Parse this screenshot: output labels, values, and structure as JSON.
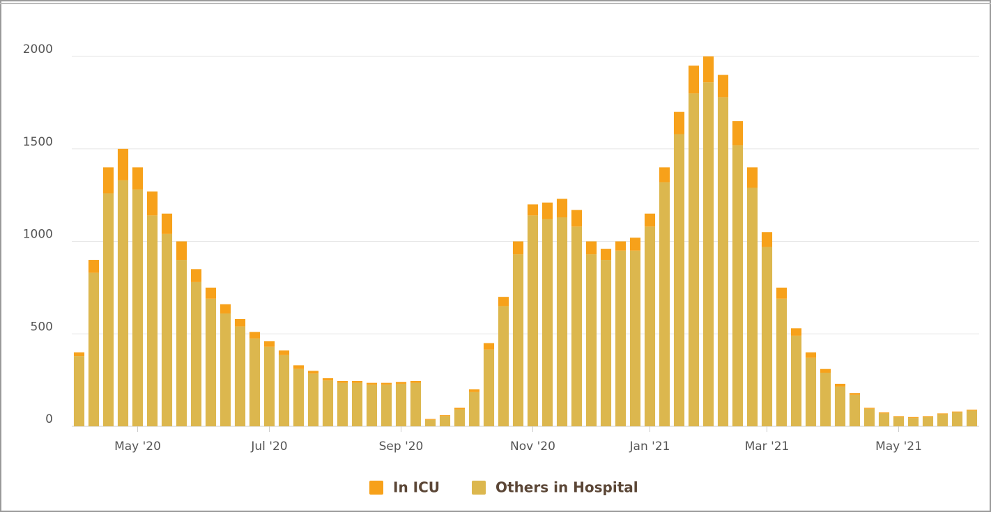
{
  "chart_data": {
    "type": "bar",
    "stacked": true,
    "categories": [
      null,
      null,
      null,
      null,
      "May '20",
      null,
      null,
      null,
      null,
      null,
      null,
      null,
      null,
      "Jul '20",
      null,
      null,
      null,
      null,
      null,
      null,
      null,
      null,
      "Sep '20",
      null,
      null,
      null,
      null,
      null,
      null,
      null,
      null,
      "Nov '20",
      null,
      null,
      null,
      null,
      null,
      null,
      null,
      "Jan '21",
      null,
      null,
      null,
      null,
      null,
      null,
      null,
      "Mar '21",
      null,
      null,
      null,
      null,
      null,
      null,
      null,
      null,
      "May '21",
      null,
      null,
      null,
      null,
      null
    ],
    "series": [
      {
        "name": "In ICU",
        "color": "#f7a11a",
        "values": [
          20,
          70,
          140,
          170,
          120,
          130,
          110,
          100,
          70,
          60,
          50,
          40,
          35,
          30,
          25,
          20,
          15,
          12,
          10,
          10,
          10,
          10,
          10,
          10,
          5,
          5,
          8,
          15,
          35,
          50,
          70,
          60,
          90,
          100,
          90,
          70,
          60,
          50,
          70,
          70,
          80,
          120,
          150,
          140,
          120,
          130,
          110,
          80,
          60,
          40,
          30,
          20,
          15,
          10,
          5,
          5,
          5,
          5,
          5,
          5,
          5,
          5
        ]
      },
      {
        "name": "Others in Hospital",
        "color": "#dcb74e",
        "values": [
          380,
          830,
          1260,
          1330,
          1280,
          1140,
          1040,
          900,
          780,
          690,
          610,
          540,
          475,
          430,
          385,
          310,
          285,
          248,
          235,
          235,
          225,
          225,
          230,
          235,
          35,
          55,
          92,
          185,
          415,
          650,
          930,
          1140,
          1120,
          1130,
          1080,
          930,
          900,
          950,
          950,
          1080,
          1320,
          1580,
          1800,
          1860,
          1780,
          1520,
          1290,
          970,
          690,
          490,
          370,
          290,
          215,
          170,
          95,
          70,
          50,
          45,
          50,
          65,
          75,
          85
        ]
      }
    ],
    "ylim": [
      0,
      2000
    ],
    "yticks": [
      0,
      500,
      1000,
      1500,
      2000
    ],
    "grid": true,
    "legend": "bottom"
  }
}
